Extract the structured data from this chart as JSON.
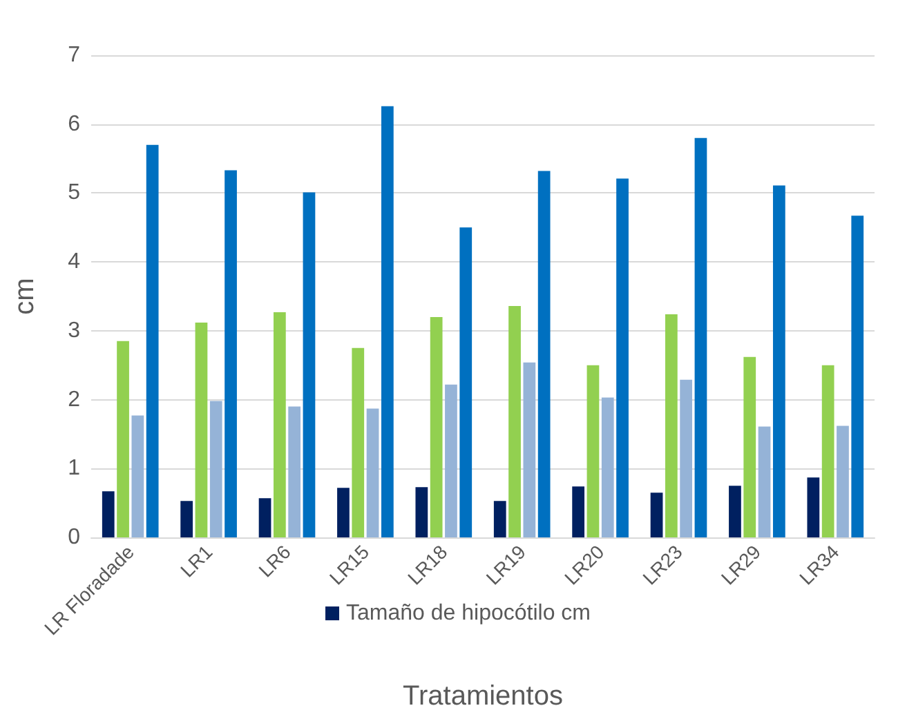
{
  "chart_data": {
    "type": "bar",
    "xlabel": "Tratamientos",
    "ylabel": "cm",
    "categories": [
      "LR Floradade",
      "LR1",
      "LR6",
      "LR15",
      "LR18",
      "LR19",
      "LR20",
      "LR23",
      "LR29",
      "LR34"
    ],
    "series": [
      {
        "name": "Tamaño de hipocótilo cm",
        "color": "#002060",
        "values": [
          0.67,
          0.53,
          0.57,
          0.72,
          0.73,
          0.53,
          0.74,
          0.65,
          0.75,
          0.87
        ]
      },
      {
        "color": "#92d050",
        "values": [
          2.85,
          3.12,
          3.27,
          2.75,
          3.2,
          3.36,
          2.5,
          3.24,
          2.62,
          2.5
        ]
      },
      {
        "color": "#95b3d7",
        "values": [
          1.77,
          1.98,
          1.9,
          1.87,
          2.22,
          2.54,
          2.03,
          2.29,
          1.61,
          1.62
        ]
      },
      {
        "color": "#0070c0",
        "values": [
          5.7,
          5.33,
          5.01,
          6.26,
          4.5,
          5.32,
          5.21,
          5.8,
          5.11,
          4.67
        ]
      }
    ],
    "ylim": [
      0,
      7
    ],
    "yticks": [
      0,
      1,
      2,
      3,
      4,
      5,
      6,
      7
    ],
    "grid": "y",
    "legend": "bottom"
  }
}
